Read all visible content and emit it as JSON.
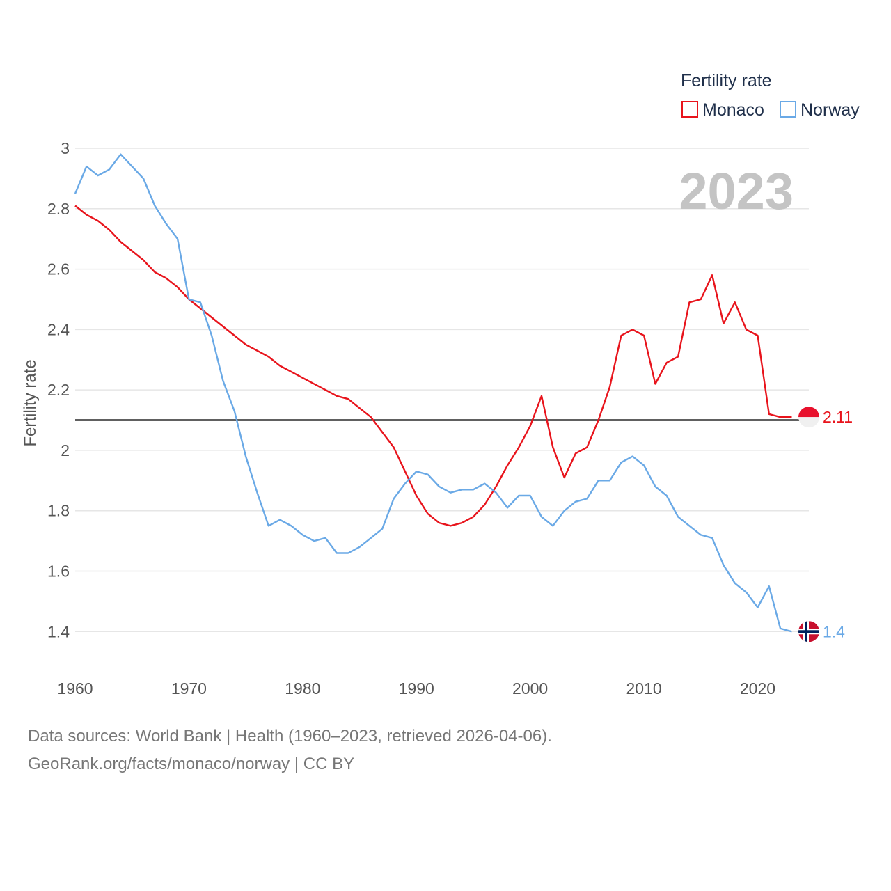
{
  "chart_data": {
    "type": "line",
    "title": "2023",
    "ylabel": "Fertility rate",
    "xlabel": "",
    "xlim": [
      1960,
      2024.5
    ],
    "ylim": [
      1.29,
      3.03
    ],
    "grid": true,
    "legend_title": "Fertility rate",
    "legend_position": "top-right",
    "x_ticks": [
      1960,
      1970,
      1980,
      1990,
      2000,
      2010,
      2020
    ],
    "x_tick_labels": [
      "1960",
      "1970",
      "1980",
      "1990",
      "2000",
      "2010",
      "2020"
    ],
    "y_ticks": [
      1.4,
      1.6,
      1.8,
      2.0,
      2.2,
      2.4,
      2.6,
      2.8,
      3.0
    ],
    "y_tick_labels": [
      "1.4",
      "1.6",
      "1.8",
      "2",
      "2.2",
      "2.4",
      "2.6",
      "2.8",
      "3"
    ],
    "reference_line": {
      "y": 2.1
    },
    "x": [
      1960,
      1961,
      1962,
      1963,
      1964,
      1965,
      1966,
      1967,
      1968,
      1969,
      1970,
      1971,
      1972,
      1973,
      1974,
      1975,
      1976,
      1977,
      1978,
      1979,
      1980,
      1981,
      1982,
      1983,
      1984,
      1985,
      1986,
      1987,
      1988,
      1989,
      1990,
      1991,
      1992,
      1993,
      1994,
      1995,
      1996,
      1997,
      1998,
      1999,
      2000,
      2001,
      2002,
      2003,
      2004,
      2005,
      2006,
      2007,
      2008,
      2009,
      2010,
      2011,
      2012,
      2013,
      2014,
      2015,
      2016,
      2017,
      2018,
      2019,
      2020,
      2021,
      2022,
      2023
    ],
    "series": [
      {
        "name": "Monaco",
        "color": "#e8141c",
        "end_label": "2.11",
        "values": [
          2.81,
          2.78,
          2.76,
          2.73,
          2.69,
          2.66,
          2.63,
          2.59,
          2.57,
          2.54,
          2.5,
          2.47,
          2.44,
          2.41,
          2.38,
          2.35,
          2.33,
          2.31,
          2.28,
          2.26,
          2.24,
          2.22,
          2.2,
          2.18,
          2.17,
          2.14,
          2.11,
          2.06,
          2.01,
          1.93,
          1.85,
          1.79,
          1.76,
          1.75,
          1.76,
          1.78,
          1.82,
          1.88,
          1.95,
          2.01,
          2.08,
          2.18,
          2.01,
          1.91,
          1.99,
          2.01,
          2.1,
          2.21,
          2.38,
          2.4,
          2.38,
          2.22,
          2.29,
          2.31,
          2.49,
          2.5,
          2.58,
          2.42,
          2.49,
          2.4,
          2.38,
          2.12,
          2.11,
          2.11
        ]
      },
      {
        "name": "Norway",
        "color": "#6aa9e6",
        "end_label": "1.4",
        "values": [
          2.85,
          2.94,
          2.91,
          2.93,
          2.98,
          2.94,
          2.9,
          2.81,
          2.75,
          2.7,
          2.5,
          2.49,
          2.38,
          2.23,
          2.13,
          1.98,
          1.86,
          1.75,
          1.77,
          1.75,
          1.72,
          1.7,
          1.71,
          1.66,
          1.66,
          1.68,
          1.71,
          1.74,
          1.84,
          1.89,
          1.93,
          1.92,
          1.88,
          1.86,
          1.87,
          1.87,
          1.89,
          1.86,
          1.81,
          1.85,
          1.85,
          1.78,
          1.75,
          1.8,
          1.83,
          1.84,
          1.9,
          1.9,
          1.96,
          1.98,
          1.95,
          1.88,
          1.85,
          1.78,
          1.75,
          1.72,
          1.71,
          1.62,
          1.56,
          1.53,
          1.48,
          1.55,
          1.41,
          1.4
        ]
      }
    ]
  },
  "footer": {
    "line1": "Data sources: World Bank | Health (1960–2023, retrieved 2026-04-06).",
    "line2": "GeoRank.org/facts/monaco/norway | CC BY"
  }
}
